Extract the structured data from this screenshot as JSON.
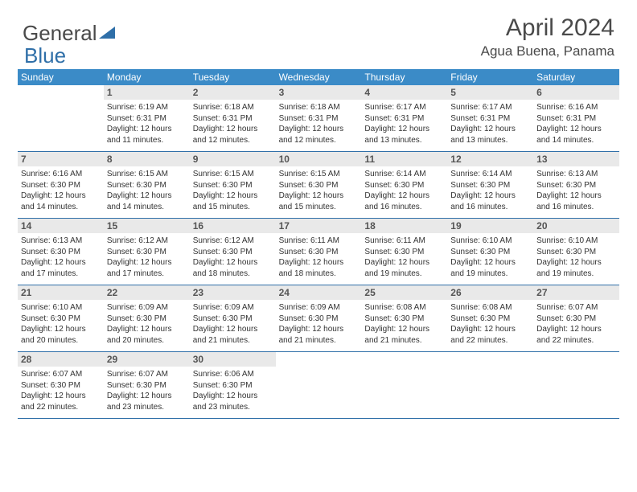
{
  "brand": {
    "part1": "General",
    "part2": "Blue"
  },
  "title": "April 2024",
  "location": "Agua Buena, Panama",
  "weekdays": [
    "Sunday",
    "Monday",
    "Tuesday",
    "Wednesday",
    "Thursday",
    "Friday",
    "Saturday"
  ],
  "colors": {
    "header_bg": "#3b8bc7",
    "header_text": "#ffffff",
    "rule": "#2f6fa8",
    "daynum_bg": "#e9e9e9",
    "text": "#333333"
  },
  "start_offset": 1,
  "days": [
    {
      "n": 1,
      "sunrise": "6:19 AM",
      "sunset": "6:31 PM",
      "daylight": "12 hours and 11 minutes."
    },
    {
      "n": 2,
      "sunrise": "6:18 AM",
      "sunset": "6:31 PM",
      "daylight": "12 hours and 12 minutes."
    },
    {
      "n": 3,
      "sunrise": "6:18 AM",
      "sunset": "6:31 PM",
      "daylight": "12 hours and 12 minutes."
    },
    {
      "n": 4,
      "sunrise": "6:17 AM",
      "sunset": "6:31 PM",
      "daylight": "12 hours and 13 minutes."
    },
    {
      "n": 5,
      "sunrise": "6:17 AM",
      "sunset": "6:31 PM",
      "daylight": "12 hours and 13 minutes."
    },
    {
      "n": 6,
      "sunrise": "6:16 AM",
      "sunset": "6:31 PM",
      "daylight": "12 hours and 14 minutes."
    },
    {
      "n": 7,
      "sunrise": "6:16 AM",
      "sunset": "6:30 PM",
      "daylight": "12 hours and 14 minutes."
    },
    {
      "n": 8,
      "sunrise": "6:15 AM",
      "sunset": "6:30 PM",
      "daylight": "12 hours and 14 minutes."
    },
    {
      "n": 9,
      "sunrise": "6:15 AM",
      "sunset": "6:30 PM",
      "daylight": "12 hours and 15 minutes."
    },
    {
      "n": 10,
      "sunrise": "6:15 AM",
      "sunset": "6:30 PM",
      "daylight": "12 hours and 15 minutes."
    },
    {
      "n": 11,
      "sunrise": "6:14 AM",
      "sunset": "6:30 PM",
      "daylight": "12 hours and 16 minutes."
    },
    {
      "n": 12,
      "sunrise": "6:14 AM",
      "sunset": "6:30 PM",
      "daylight": "12 hours and 16 minutes."
    },
    {
      "n": 13,
      "sunrise": "6:13 AM",
      "sunset": "6:30 PM",
      "daylight": "12 hours and 16 minutes."
    },
    {
      "n": 14,
      "sunrise": "6:13 AM",
      "sunset": "6:30 PM",
      "daylight": "12 hours and 17 minutes."
    },
    {
      "n": 15,
      "sunrise": "6:12 AM",
      "sunset": "6:30 PM",
      "daylight": "12 hours and 17 minutes."
    },
    {
      "n": 16,
      "sunrise": "6:12 AM",
      "sunset": "6:30 PM",
      "daylight": "12 hours and 18 minutes."
    },
    {
      "n": 17,
      "sunrise": "6:11 AM",
      "sunset": "6:30 PM",
      "daylight": "12 hours and 18 minutes."
    },
    {
      "n": 18,
      "sunrise": "6:11 AM",
      "sunset": "6:30 PM",
      "daylight": "12 hours and 19 minutes."
    },
    {
      "n": 19,
      "sunrise": "6:10 AM",
      "sunset": "6:30 PM",
      "daylight": "12 hours and 19 minutes."
    },
    {
      "n": 20,
      "sunrise": "6:10 AM",
      "sunset": "6:30 PM",
      "daylight": "12 hours and 19 minutes."
    },
    {
      "n": 21,
      "sunrise": "6:10 AM",
      "sunset": "6:30 PM",
      "daylight": "12 hours and 20 minutes."
    },
    {
      "n": 22,
      "sunrise": "6:09 AM",
      "sunset": "6:30 PM",
      "daylight": "12 hours and 20 minutes."
    },
    {
      "n": 23,
      "sunrise": "6:09 AM",
      "sunset": "6:30 PM",
      "daylight": "12 hours and 21 minutes."
    },
    {
      "n": 24,
      "sunrise": "6:09 AM",
      "sunset": "6:30 PM",
      "daylight": "12 hours and 21 minutes."
    },
    {
      "n": 25,
      "sunrise": "6:08 AM",
      "sunset": "6:30 PM",
      "daylight": "12 hours and 21 minutes."
    },
    {
      "n": 26,
      "sunrise": "6:08 AM",
      "sunset": "6:30 PM",
      "daylight": "12 hours and 22 minutes."
    },
    {
      "n": 27,
      "sunrise": "6:07 AM",
      "sunset": "6:30 PM",
      "daylight": "12 hours and 22 minutes."
    },
    {
      "n": 28,
      "sunrise": "6:07 AM",
      "sunset": "6:30 PM",
      "daylight": "12 hours and 22 minutes."
    },
    {
      "n": 29,
      "sunrise": "6:07 AM",
      "sunset": "6:30 PM",
      "daylight": "12 hours and 23 minutes."
    },
    {
      "n": 30,
      "sunrise": "6:06 AM",
      "sunset": "6:30 PM",
      "daylight": "12 hours and 23 minutes."
    }
  ]
}
